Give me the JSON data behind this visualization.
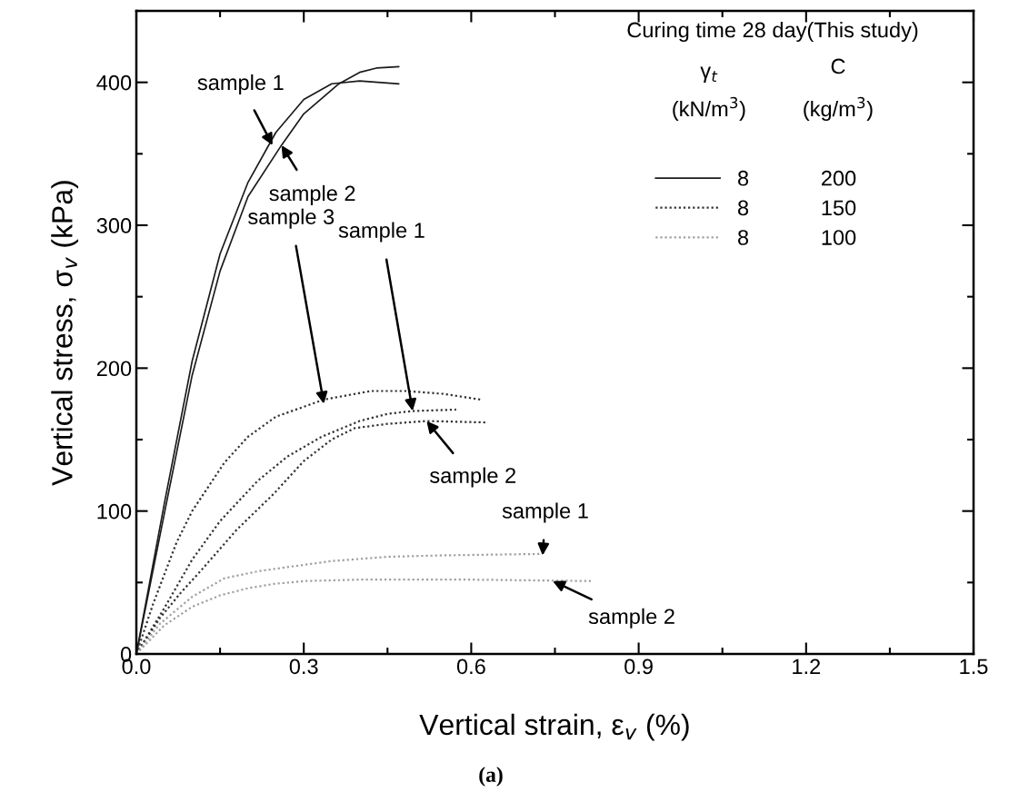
{
  "chart_data": {
    "type": "line",
    "xlabel": "Vertical strain, ε$_{v}$ (%)",
    "ylabel": "Vertical stress, σ$_{v}$ (kPa)",
    "xlim": [
      0,
      1.5
    ],
    "ylim": [
      0,
      450
    ],
    "xticks": [
      {
        "value": 0,
        "label": "0.0"
      },
      {
        "value": 0.3,
        "label": "0.3"
      },
      {
        "value": 0.6,
        "label": "0.6"
      },
      {
        "value": 0.9,
        "label": "0.9"
      },
      {
        "value": 1.2,
        "label": "1.2"
      },
      {
        "value": 1.5,
        "label": "1.5"
      }
    ],
    "yticks": [
      0,
      100,
      200,
      300,
      400
    ],
    "grid": false,
    "legend": "top right",
    "legend_title": "Curing time 28 day(This study)",
    "series": [
      {
        "name": "8            200",
        "color": "#1a1a1a",
        "line_style": "solid",
        "x": [
          0,
          0.05,
          0.1,
          0.15,
          0.2,
          0.25,
          0.3,
          0.35,
          0.4,
          0.47
        ],
        "values": [
          0,
          105,
          205,
          280,
          330,
          365,
          388,
          399,
          401,
          399
        ]
      },
      {
        "color": "#1a1a1a",
        "line_style": "solid",
        "x": [
          0,
          0.05,
          0.1,
          0.15,
          0.2,
          0.26,
          0.3,
          0.363,
          0.4,
          0.43,
          0.47
        ],
        "values": [
          0,
          98,
          195,
          268,
          320,
          356,
          378,
          399,
          407,
          410,
          411
        ]
      },
      {
        "name": "8            150",
        "color": "#333333",
        "line_style": "dotted",
        "x": [
          0,
          0.03,
          0.072,
          0.1,
          0.158,
          0.2,
          0.25,
          0.336,
          0.42,
          0.484,
          0.55,
          0.617
        ],
        "values": [
          0,
          35,
          78,
          100,
          134,
          152,
          166,
          178,
          184,
          184,
          182,
          178
        ]
      },
      {
        "color": "#333333",
        "line_style": "dotted",
        "x": [
          0,
          0.05,
          0.1,
          0.15,
          0.217,
          0.27,
          0.332,
          0.4,
          0.45,
          0.495,
          0.573
        ],
        "values": [
          0,
          32,
          66,
          93,
          121,
          138,
          152,
          163,
          168,
          170,
          171
        ]
      },
      {
        "color": "#333333",
        "line_style": "dotted",
        "x": [
          0,
          0.042,
          0.08,
          0.115,
          0.18,
          0.246,
          0.3,
          0.35,
          0.391,
          0.45,
          0.52,
          0.629
        ],
        "values": [
          0,
          25,
          43,
          58,
          87,
          112,
          135,
          150,
          158,
          161,
          163,
          162
        ]
      },
      {
        "name": "8            100",
        "color": "#a0a0a0",
        "line_style": "dotted",
        "x": [
          0,
          0.042,
          0.1,
          0.158,
          0.22,
          0.275,
          0.35,
          0.45,
          0.55,
          0.728
        ],
        "values": [
          0,
          21,
          40,
          53,
          58,
          61,
          65,
          68,
          69,
          70
        ]
      },
      {
        "color": "#a0a0a0",
        "line_style": "dotted",
        "x": [
          0,
          0.05,
          0.1,
          0.15,
          0.2,
          0.246,
          0.3,
          0.4,
          0.6,
          0.816
        ],
        "values": [
          0,
          20,
          33,
          41,
          46,
          49,
          51,
          52,
          52,
          51
        ]
      }
    ],
    "annotations": [
      "γ$_{t}$",
      "(kN/m$^{3}$)",
      "C",
      "(kg/m$^{3}$)",
      "(a)",
      {
        "text": "sample 1",
        "x": 0.244,
        "y": 356
      },
      {
        "text": "sample 2",
        "x": 0.26,
        "y": 356
      },
      {
        "text": "sample 3",
        "x": 0.336,
        "y": 175
      },
      {
        "text": "sample 1",
        "x": 0.495,
        "y": 170
      },
      {
        "text": "sample 2",
        "x": 0.52,
        "y": 163
      },
      {
        "text": "sample 1",
        "x": 0.728,
        "y": 69
      },
      {
        "text": "sample 2",
        "x": 0.746,
        "y": 51
      }
    ]
  }
}
